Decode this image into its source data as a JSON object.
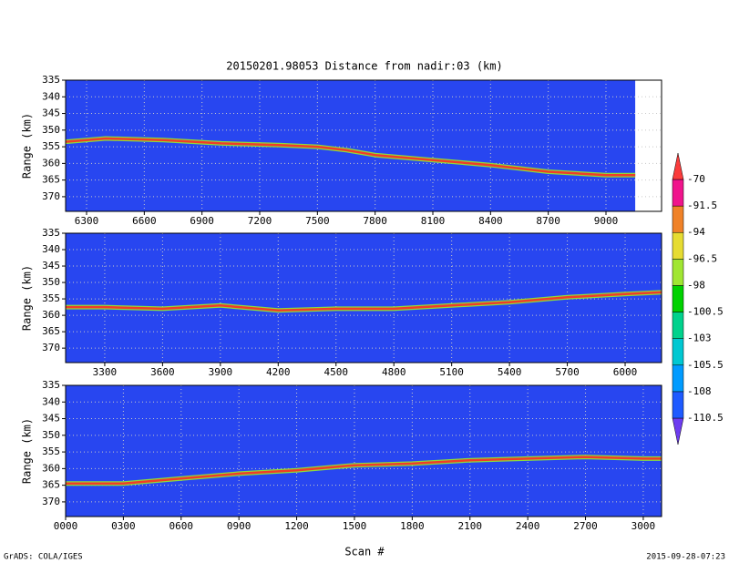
{
  "title": "20150201.98053    Distance from nadir:03 (km)",
  "xlabel": "Scan #",
  "footer_left": "GrADS: COLA/IGES",
  "footer_right": "2015-09-28-07:23",
  "colorbar": {
    "levels": [
      -110.5,
      -108,
      -105.5,
      -103,
      -100.5,
      -98,
      -96.5,
      -94,
      -91.5,
      -70
    ],
    "colors": [
      "#6e3cf0",
      "#1e5aff",
      "#009bff",
      "#00c8d2",
      "#00d28c",
      "#00d200",
      "#a0e632",
      "#e6dc32",
      "#f08228",
      "#f0148c",
      "#fa3c3c"
    ]
  },
  "chart_data": [
    {
      "type": "line",
      "ylabel": "Range (km)",
      "grid": true,
      "y_inverted": true,
      "background": "#2846f0",
      "xlim": [
        6191,
        9289
      ],
      "ylim": [
        335,
        374.4
      ],
      "xticks": [
        6300,
        6600,
        6900,
        7200,
        7500,
        7800,
        8100,
        8400,
        8700,
        9000
      ],
      "yticks": [
        335,
        340,
        345,
        350,
        355,
        360,
        365,
        370
      ],
      "series": [
        {
          "color": "#f03c28",
          "x": [
            6191,
            6400,
            6700,
            7000,
            7300,
            7500,
            7650,
            7800,
            8100,
            8400,
            8700,
            9000,
            9152
          ],
          "values": [
            353.5,
            352.5,
            353,
            354,
            354.5,
            355,
            356,
            357.5,
            359,
            360.5,
            362.5,
            363.5,
            363.5
          ]
        }
      ]
    },
    {
      "type": "line",
      "ylabel": "Range (km)",
      "grid": true,
      "y_inverted": true,
      "background": "#2846f0",
      "xlim": [
        3097,
        6189
      ],
      "ylim": [
        335,
        374.4
      ],
      "xticks": [
        3300,
        3600,
        3900,
        4200,
        4500,
        4800,
        5100,
        5400,
        5700,
        6000
      ],
      "yticks": [
        335,
        340,
        345,
        350,
        355,
        360,
        365,
        370
      ],
      "series": [
        {
          "color": "#f03c28",
          "x": [
            3097,
            3300,
            3600,
            3900,
            4200,
            4500,
            4800,
            5100,
            5400,
            5700,
            6000,
            6189
          ],
          "values": [
            357.5,
            357.5,
            358,
            357,
            358.5,
            358,
            358,
            357,
            356,
            354.5,
            353.5,
            353
          ]
        }
      ]
    },
    {
      "type": "line",
      "ylabel": "Range (km)",
      "grid": true,
      "y_inverted": true,
      "background": "#2846f0",
      "xlim": [
        0,
        3095
      ],
      "ylim": [
        335,
        374.4
      ],
      "xticks": [
        {
          "value": 0,
          "label": "0000"
        },
        {
          "value": 300,
          "label": "0300"
        },
        {
          "value": 600,
          "label": "0600"
        },
        {
          "value": 900,
          "label": "0900"
        },
        1200,
        1500,
        1800,
        2100,
        2400,
        2700,
        3000
      ],
      "yticks": [
        335,
        340,
        345,
        350,
        355,
        360,
        365,
        370
      ],
      "series": [
        {
          "color": "#f03c28",
          "x": [
            0,
            300,
            600,
            900,
            1200,
            1500,
            1800,
            2100,
            2400,
            2700,
            3000,
            3095
          ],
          "values": [
            364.5,
            364.5,
            363,
            361.5,
            360.5,
            359,
            358.5,
            357.5,
            357,
            356.5,
            357,
            357
          ]
        }
      ]
    }
  ]
}
